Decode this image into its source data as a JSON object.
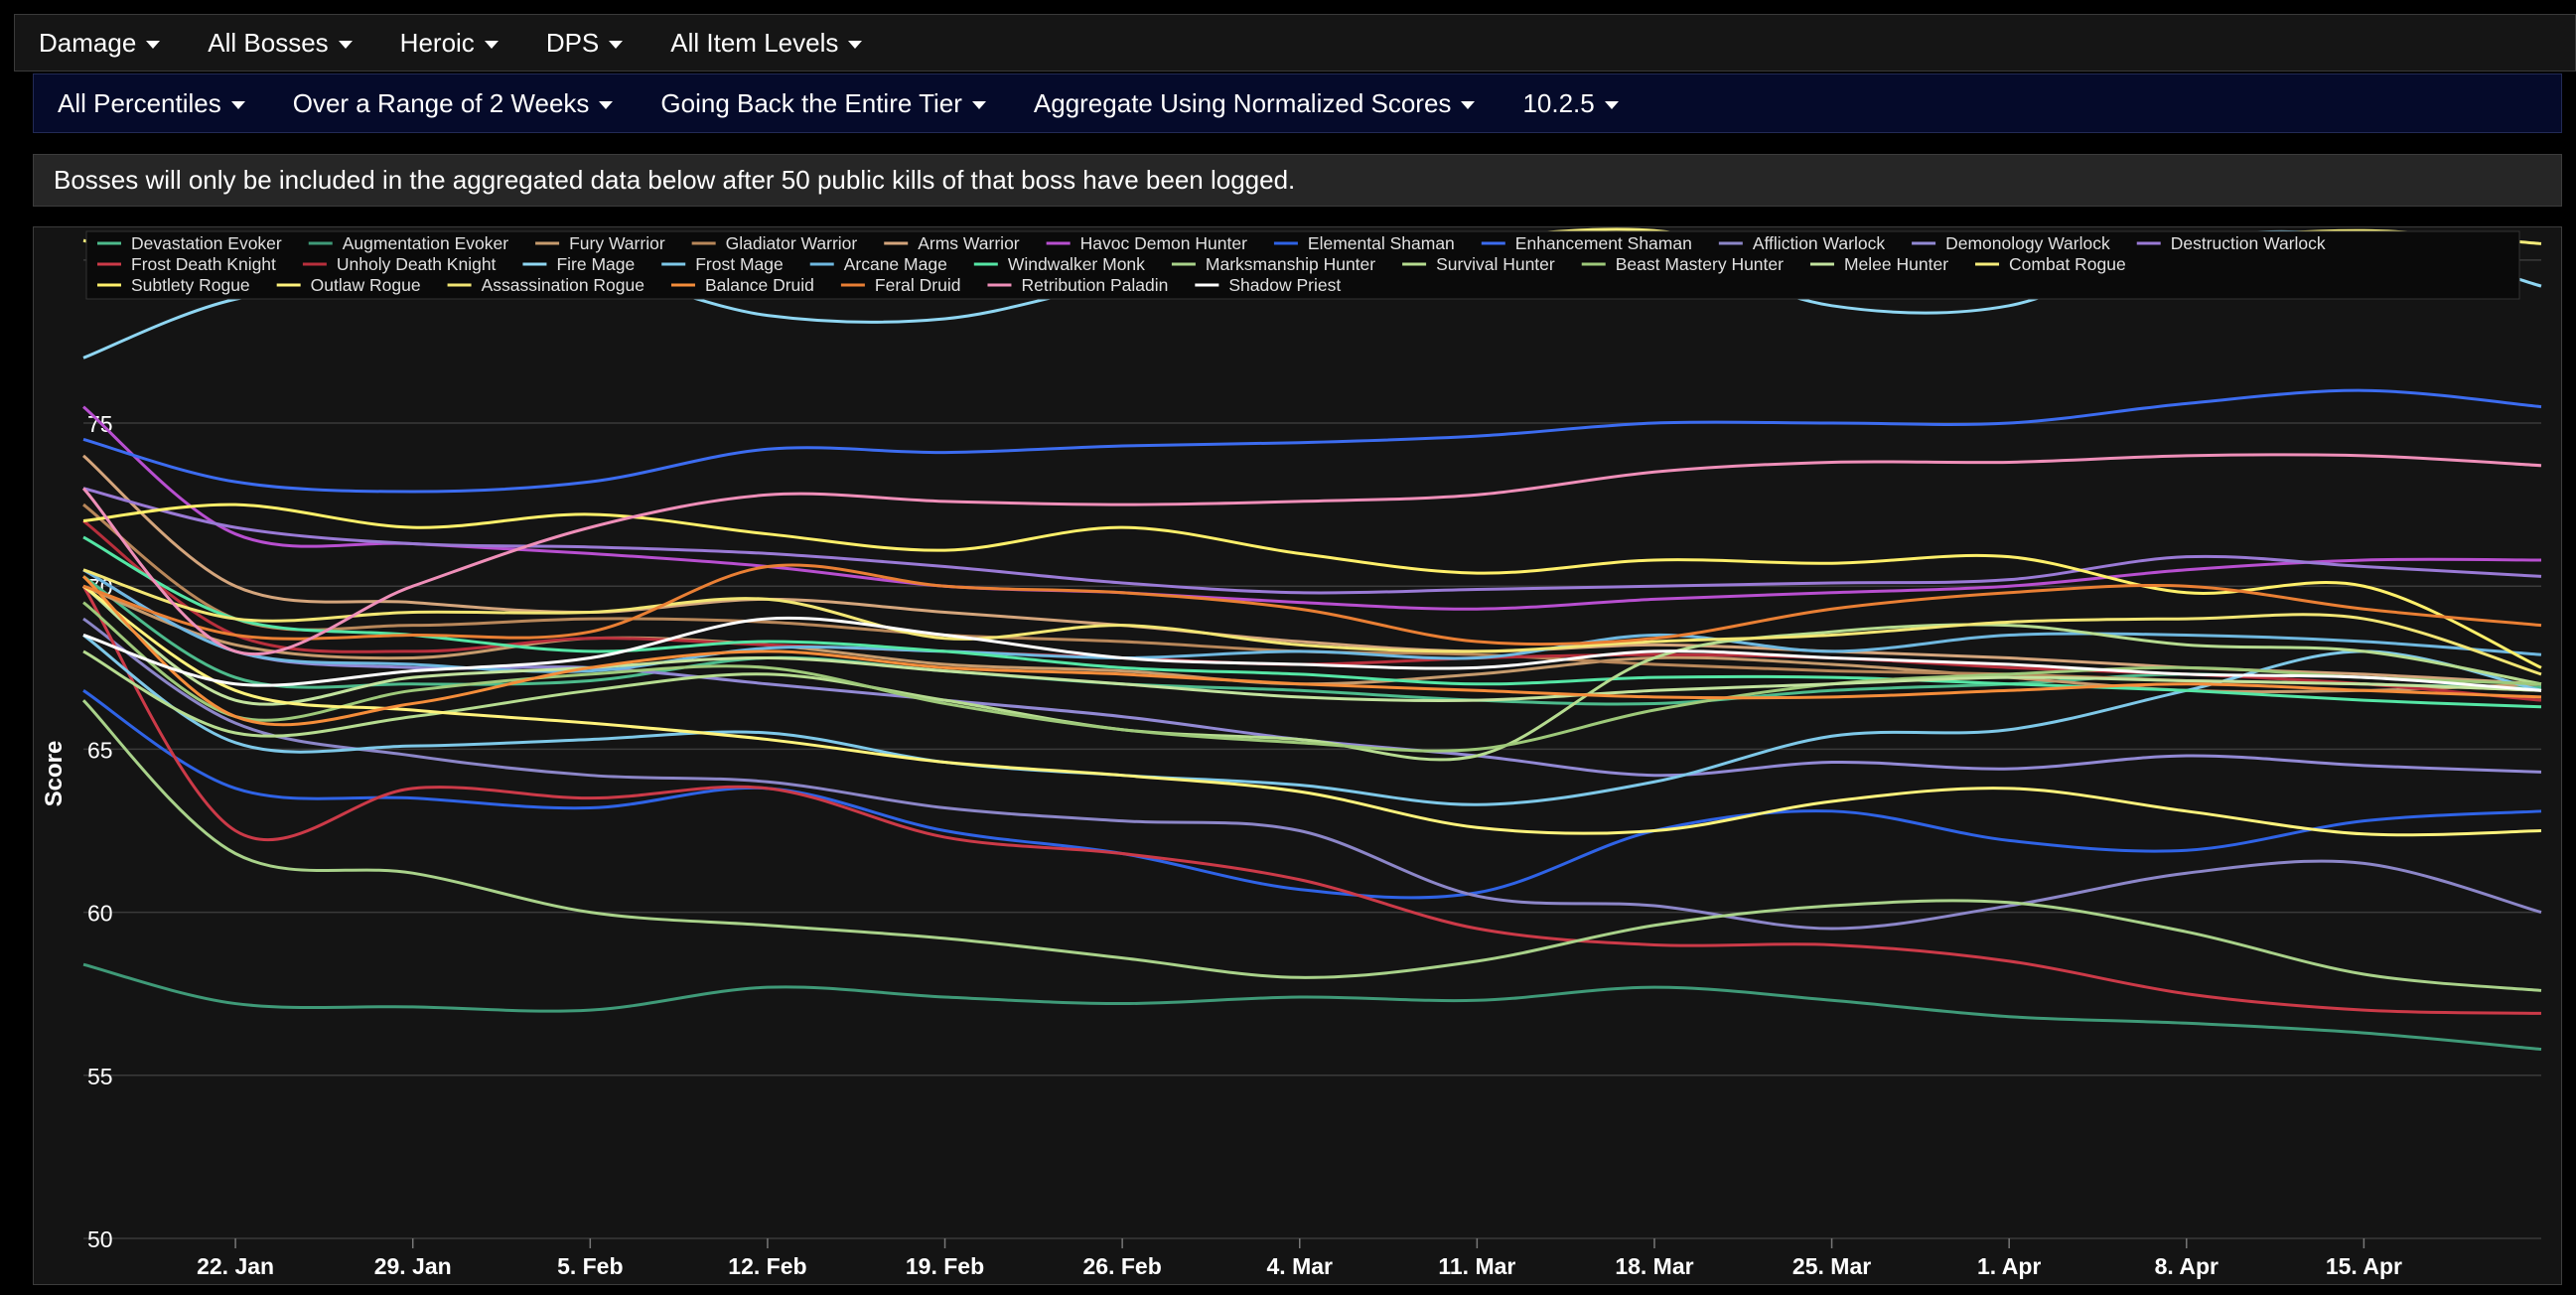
{
  "toolbar1": [
    {
      "label": "Damage"
    },
    {
      "label": "All Bosses"
    },
    {
      "label": "Heroic"
    },
    {
      "label": "DPS"
    },
    {
      "label": "All Item Levels"
    }
  ],
  "toolbar2": [
    {
      "label": "All Percentiles"
    },
    {
      "label": "Over a Range of 2 Weeks"
    },
    {
      "label": "Going Back the Entire Tier"
    },
    {
      "label": "Aggregate Using Normalized Scores"
    },
    {
      "label": "10.2.5"
    }
  ],
  "notice": "Bosses will only be included in the aggregated data below after 50 public kills of that boss have been logged.",
  "chart_data": {
    "type": "line",
    "title": "",
    "xlabel": "",
    "ylabel": "Score",
    "ylim": [
      50,
      81
    ],
    "yticks": [
      50,
      55,
      60,
      65,
      70,
      75,
      80
    ],
    "x_tick_labels": [
      "22. Jan",
      "29. Jan",
      "5. Feb",
      "12. Feb",
      "19. Feb",
      "26. Feb",
      "4. Mar",
      "11. Mar",
      "18. Mar",
      "25. Mar",
      "1. Apr",
      "8. Apr",
      "15. Apr"
    ],
    "x_range": [
      "16. Jan",
      "22. Apr"
    ],
    "grid": true,
    "legend_position": "top-left",
    "x": [
      "16. Jan",
      "22. Jan",
      "29. Jan",
      "5. Feb",
      "12. Feb",
      "19. Feb",
      "26. Feb",
      "4. Mar",
      "11. Mar",
      "18. Mar",
      "25. Mar",
      "1. Apr",
      "8. Apr",
      "15. Apr",
      "22. Apr"
    ],
    "series": [
      {
        "name": "Devastation Evoker",
        "color": "#4dbb8c",
        "values": [
          70.3,
          67.2,
          67.0,
          67.1,
          67.8,
          67.4,
          67.0,
          66.8,
          66.5,
          66.4,
          66.8,
          67.0,
          67.3,
          67.0,
          66.9
        ]
      },
      {
        "name": "Augmentation Evoker",
        "color": "#3f9a78",
        "values": [
          58.4,
          57.2,
          57.1,
          57.0,
          57.7,
          57.4,
          57.2,
          57.4,
          57.3,
          57.7,
          57.3,
          56.8,
          56.6,
          56.3,
          55.8
        ]
      },
      {
        "name": "Fury Warrior",
        "color": "#c69b6d",
        "values": [
          70.0,
          68.2,
          67.8,
          68.4,
          68.2,
          67.6,
          67.4,
          67.0,
          67.3,
          67.8,
          67.6,
          67.2,
          66.8,
          66.8,
          67.0
        ]
      },
      {
        "name": "Gladiator Warrior",
        "color": "#b8875a",
        "values": [
          72.5,
          69.0,
          68.8,
          69.0,
          68.9,
          68.5,
          68.3,
          68.0,
          67.9,
          67.6,
          67.4,
          67.3,
          67.1,
          67.0,
          66.8
        ]
      },
      {
        "name": "Arms Warrior",
        "color": "#d4a57c",
        "values": [
          74.0,
          70.0,
          69.5,
          69.2,
          69.6,
          69.2,
          68.8,
          68.3,
          68.0,
          68.2,
          68.0,
          67.8,
          67.5,
          67.3,
          67.0
        ]
      },
      {
        "name": "Havoc Demon Hunter",
        "color": "#b84fd0",
        "values": [
          75.5,
          71.6,
          71.3,
          71.0,
          70.6,
          70.0,
          69.8,
          69.5,
          69.3,
          69.6,
          69.8,
          70.0,
          70.5,
          70.8,
          70.8
        ]
      },
      {
        "name": "Elemental Shaman",
        "color": "#2f63e6",
        "values": [
          66.8,
          63.8,
          63.5,
          63.2,
          63.8,
          62.5,
          61.8,
          60.7,
          60.6,
          62.5,
          63.1,
          62.2,
          61.9,
          62.8,
          63.1
        ]
      },
      {
        "name": "Enhancement Shaman",
        "color": "#3c6cf0",
        "values": [
          74.5,
          73.2,
          72.9,
          73.2,
          74.2,
          74.1,
          74.3,
          74.4,
          74.6,
          75.0,
          75.0,
          75.0,
          75.6,
          76.0,
          75.5
        ]
      },
      {
        "name": "Affliction Warlock",
        "color": "#8c86c8",
        "values": [
          69.0,
          65.8,
          64.8,
          64.2,
          64.0,
          63.2,
          62.8,
          62.5,
          60.5,
          60.2,
          59.5,
          60.2,
          61.2,
          61.5,
          60.0
        ]
      },
      {
        "name": "Demonology Warlock",
        "color": "#9289d4",
        "values": [
          70.5,
          68.0,
          67.5,
          67.5,
          67.0,
          66.5,
          66.0,
          65.3,
          64.8,
          64.2,
          64.6,
          64.4,
          64.8,
          64.5,
          64.3
        ]
      },
      {
        "name": "Destruction Warlock",
        "color": "#9a7ad6",
        "values": [
          73.0,
          71.8,
          71.3,
          71.2,
          71.0,
          70.6,
          70.1,
          69.8,
          69.9,
          70.0,
          70.1,
          70.2,
          70.9,
          70.6,
          70.3
        ]
      },
      {
        "name": "Frost Death Knight",
        "color": "#cc3a48",
        "values": [
          70.0,
          62.5,
          63.8,
          63.5,
          63.8,
          62.3,
          61.8,
          61.0,
          59.5,
          59.0,
          59.0,
          58.5,
          57.5,
          57.0,
          56.9
        ]
      },
      {
        "name": "Unholy Death Knight",
        "color": "#b82f3c",
        "values": [
          72.0,
          68.5,
          68.0,
          68.4,
          68.2,
          68.0,
          67.8,
          67.6,
          67.8,
          67.9,
          67.8,
          67.5,
          67.3,
          67.0,
          66.5
        ]
      },
      {
        "name": "Fire Mage",
        "color": "#8fd6f2",
        "values": [
          77.0,
          78.8,
          79.3,
          79.6,
          78.3,
          78.2,
          79.3,
          79.8,
          79.9,
          80.2,
          78.6,
          78.6,
          80.6,
          80.7,
          79.2
        ]
      },
      {
        "name": "Frost Mage",
        "color": "#7ec8e8",
        "values": [
          68.5,
          65.2,
          65.1,
          65.3,
          65.5,
          64.6,
          64.2,
          63.9,
          63.3,
          64.0,
          65.4,
          65.6,
          66.8,
          68.0,
          66.8
        ]
      },
      {
        "name": "Arcane Mage",
        "color": "#6fb8e0",
        "values": [
          70.5,
          68.0,
          67.6,
          67.4,
          68.1,
          68.0,
          67.8,
          68.0,
          67.8,
          68.5,
          68.0,
          68.5,
          68.5,
          68.3,
          67.9
        ]
      },
      {
        "name": "Windwalker Monk",
        "color": "#55e6a5",
        "values": [
          71.5,
          69.0,
          68.5,
          68.0,
          68.3,
          68.0,
          67.5,
          67.3,
          67.0,
          67.2,
          67.2,
          67.0,
          66.8,
          66.5,
          66.3
        ]
      },
      {
        "name": "Marksmanship Hunter",
        "color": "#a9d28a",
        "values": [
          66.5,
          61.8,
          61.2,
          60.0,
          59.6,
          59.2,
          58.6,
          58.0,
          58.5,
          59.6,
          60.2,
          60.3,
          59.4,
          58.1,
          57.6
        ]
      },
      {
        "name": "Survival Hunter",
        "color": "#b6dc90",
        "values": [
          68.0,
          65.5,
          66.0,
          66.8,
          67.3,
          66.5,
          65.6,
          65.3,
          64.8,
          67.8,
          68.6,
          68.8,
          68.2,
          68.0,
          67.0
        ]
      },
      {
        "name": "Beast Mastery Hunter",
        "color": "#9ec97a",
        "values": [
          69.5,
          66.0,
          66.8,
          67.3,
          67.5,
          66.4,
          65.6,
          65.2,
          65.0,
          66.2,
          67.0,
          67.3,
          67.5,
          67.2,
          67.0
        ]
      },
      {
        "name": "Melee Hunter",
        "color": "#c2e39e",
        "values": [
          70.0,
          66.5,
          67.2,
          67.5,
          67.8,
          67.4,
          67.0,
          66.6,
          66.5,
          66.8,
          67.0,
          67.2,
          67.1,
          67.0,
          66.8
        ]
      },
      {
        "name": "Combat Rogue",
        "color": "#f5ec7a",
        "values": [
          80.6,
          79.4,
          79.2,
          79.3,
          80.0,
          80.5,
          80.4,
          80.4,
          80.7,
          80.9,
          79.8,
          80.0,
          80.6,
          80.9,
          80.5
        ]
      },
      {
        "name": "Subtlety Rogue",
        "color": "#fff06a",
        "values": [
          72.0,
          72.5,
          71.8,
          72.2,
          71.6,
          71.1,
          71.8,
          71.0,
          70.4,
          70.8,
          70.7,
          70.9,
          69.8,
          70.0,
          67.5
        ]
      },
      {
        "name": "Outlaw Rogue",
        "color": "#fff37c",
        "values": [
          70.0,
          66.8,
          66.2,
          65.8,
          65.3,
          64.6,
          64.2,
          63.7,
          62.6,
          62.5,
          63.4,
          63.8,
          63.1,
          62.4,
          62.5
        ]
      },
      {
        "name": "Assassination Rogue",
        "color": "#f2e674",
        "values": [
          70.5,
          69.0,
          69.2,
          69.2,
          69.6,
          68.4,
          68.8,
          68.2,
          68.0,
          68.3,
          68.5,
          68.9,
          69.0,
          69.0,
          67.3
        ]
      },
      {
        "name": "Balance Druid",
        "color": "#f58d3a",
        "values": [
          70.3,
          66.0,
          66.4,
          67.5,
          68.0,
          67.5,
          67.3,
          67.0,
          66.8,
          66.6,
          66.6,
          66.8,
          67.0,
          66.8,
          66.6
        ]
      },
      {
        "name": "Feral Druid",
        "color": "#e97f34",
        "values": [
          70.0,
          68.5,
          68.5,
          68.6,
          70.6,
          70.0,
          69.8,
          69.3,
          68.3,
          68.4,
          69.3,
          69.8,
          70.0,
          69.3,
          68.8
        ]
      },
      {
        "name": "Retribution Paladin",
        "color": "#ef8fb9",
        "values": [
          73.0,
          68.0,
          70.0,
          71.8,
          72.8,
          72.6,
          72.5,
          72.6,
          72.8,
          73.5,
          73.8,
          73.8,
          74.0,
          74.0,
          73.7
        ]
      },
      {
        "name": "Shadow Priest",
        "color": "#ffffff",
        "values": [
          68.5,
          67.0,
          67.4,
          67.8,
          69.0,
          68.5,
          67.8,
          67.6,
          67.5,
          68.0,
          67.8,
          67.6,
          67.3,
          67.2,
          66.8
        ]
      }
    ]
  }
}
